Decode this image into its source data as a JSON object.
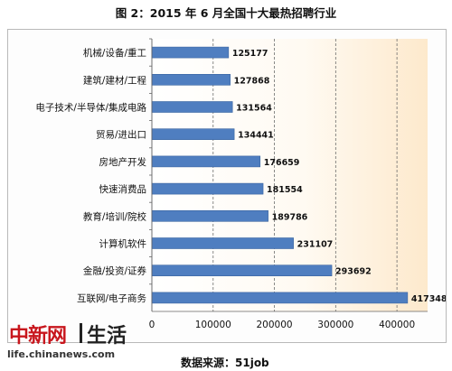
{
  "title": "图 2：2015 年 6 月全国十大最热招聘行业",
  "source": "数据来源：51job",
  "watermark": {
    "name_cn": "中新网",
    "section": "生活",
    "url": "life.chinanews.com"
  },
  "colors": {
    "bar": "#4f7ec0",
    "bar_edge": "#3a64a0",
    "plot_fade": "#fde9cc",
    "gridline": "#6e6e6e",
    "brand_red": "#c8161d"
  },
  "chart_data": {
    "type": "bar",
    "orientation": "horizontal",
    "categories": [
      "机械/设备/重工",
      "建筑/建材/工程",
      "电子技术/半导体/集成电路",
      "贸易/进出口",
      "房地产开发",
      "快速消费品",
      "教育/培训/院校",
      "计算机软件",
      "金融/投资/证券",
      "互联网/电子商务"
    ],
    "values": [
      125177,
      127868,
      131564,
      134441,
      176659,
      181554,
      189786,
      231107,
      293692,
      417348
    ],
    "xlim": [
      0,
      450000
    ],
    "xticks": [
      "0",
      "100000",
      "200000",
      "300000",
      "400000"
    ],
    "xtick_values": [
      0,
      100000,
      200000,
      300000,
      400000
    ],
    "grid": "vertical dashed",
    "legend": "none",
    "data_labels": true
  }
}
